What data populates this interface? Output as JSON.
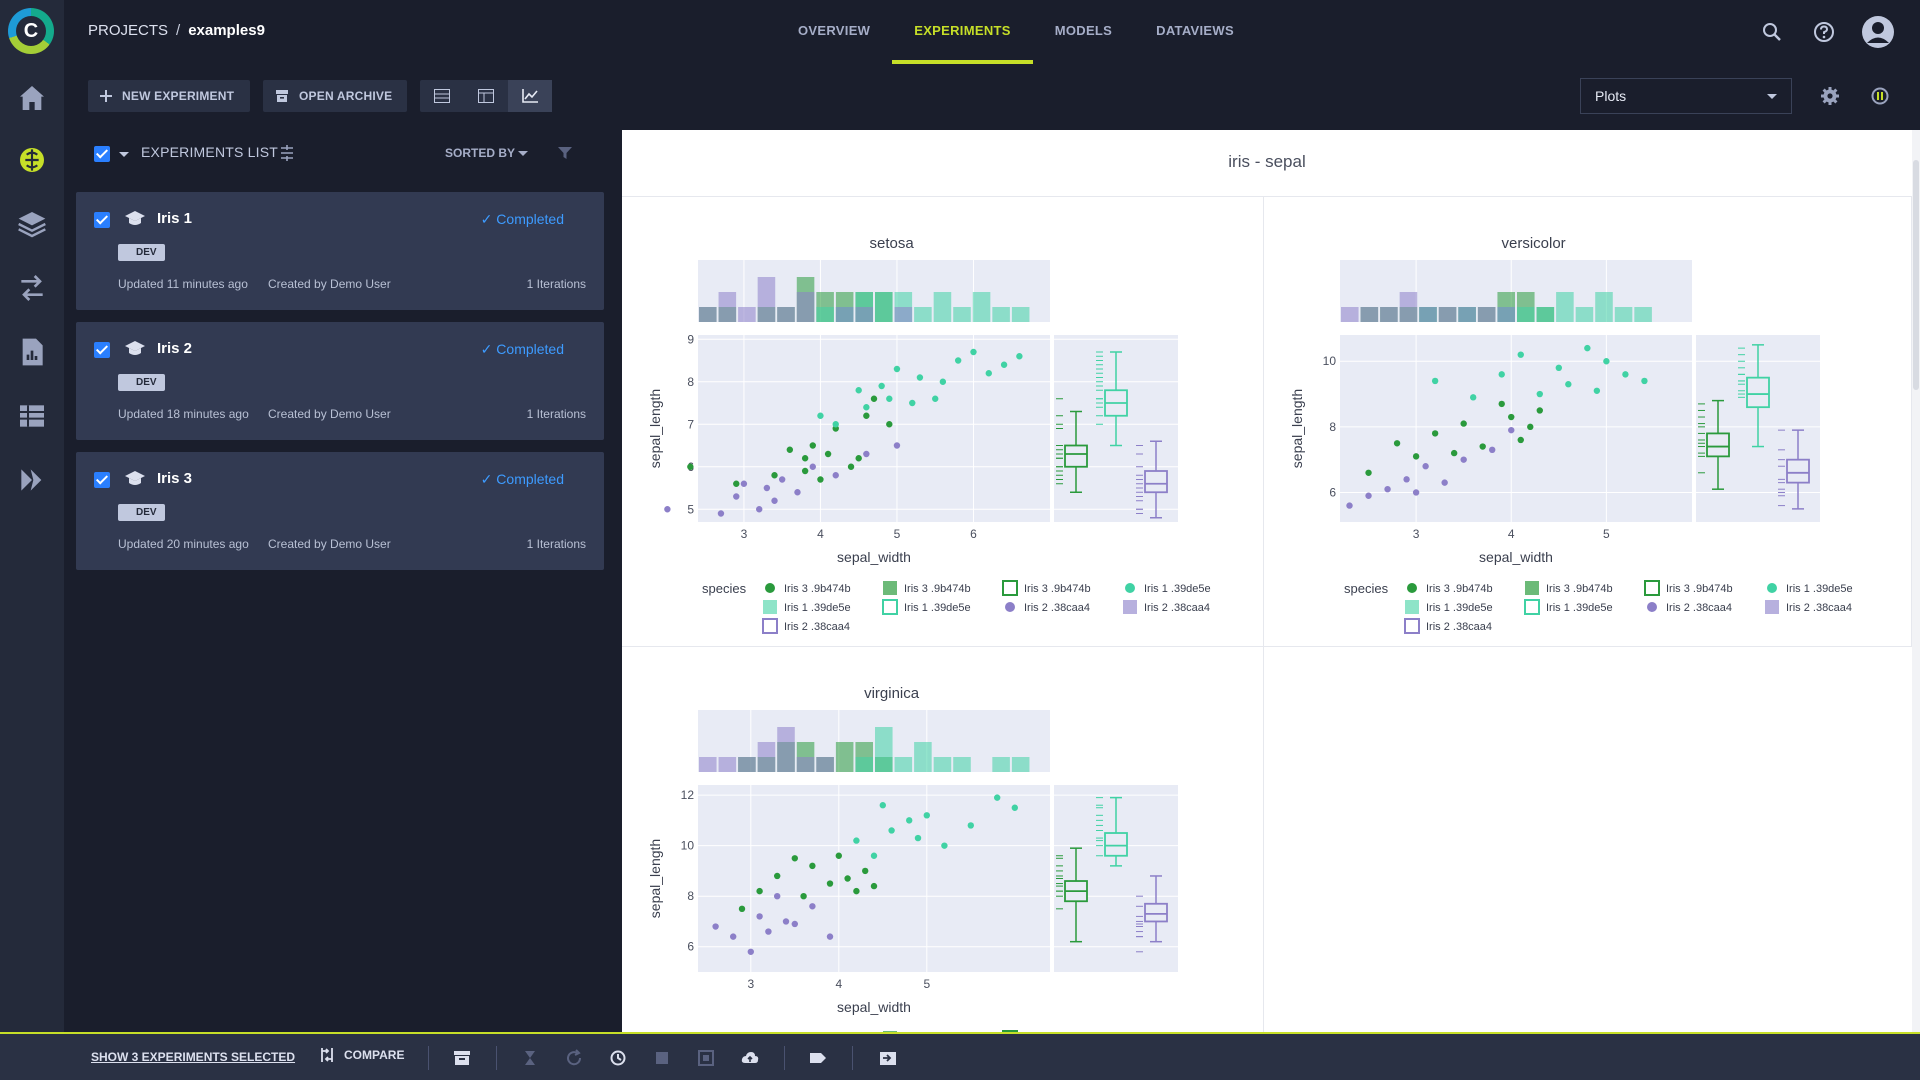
{
  "app": {
    "logo_letter": "C"
  },
  "breadcrumb": {
    "root": "PROJECTS",
    "separator": "/",
    "current": "examples9"
  },
  "tabs": [
    {
      "label": "OVERVIEW",
      "active": false
    },
    {
      "label": "EXPERIMENTS",
      "active": true
    },
    {
      "label": "MODELS",
      "active": false
    },
    {
      "label": "DATAVIEWS",
      "active": false
    }
  ],
  "toolbar": {
    "new_experiment": "NEW EXPERIMENT",
    "open_archive": "OPEN ARCHIVE",
    "view_select": "Plots"
  },
  "experiments_list": {
    "title": "EXPERIMENTS LIST",
    "sorted_by": "SORTED BY",
    "items": [
      {
        "name": "Iris 1",
        "status": "Completed",
        "tag": "DEV",
        "updated": "Updated 11 minutes ago",
        "created_by": "Created by Demo User",
        "iterations": "1 Iterations"
      },
      {
        "name": "Iris 2",
        "status": "Completed",
        "tag": "DEV",
        "updated": "Updated 18 minutes ago",
        "created_by": "Created by Demo User",
        "iterations": "1 Iterations"
      },
      {
        "name": "Iris 3",
        "status": "Completed",
        "tag": "DEV",
        "updated": "Updated 20 minutes ago",
        "created_by": "Created by Demo User",
        "iterations": "1 Iterations"
      }
    ]
  },
  "plot_section": {
    "title": "iris - sepal"
  },
  "legend": {
    "title": "species",
    "entries": [
      "Iris 3 .9b474b",
      "Iris 3 .9b474b",
      "Iris 3 .9b474b",
      "Iris 1 .39de5e",
      "Iris 1 .39de5e",
      "Iris 1 .39de5e",
      "Iris 2 .38caa4",
      "Iris 2 .38caa4",
      "Iris 2 .38caa4"
    ]
  },
  "colors": {
    "green": "#2a9a3c",
    "teal": "#40d2a4",
    "purple": "#8c7fc8",
    "accent": "#c6df28",
    "status_blue": "#3d9bff"
  },
  "chart_data": [
    {
      "type": "scatter",
      "title": "setosa",
      "xlabel": "sepal_width",
      "ylabel": "sepal_length",
      "x_ticks": [
        3,
        4,
        5,
        6
      ],
      "y_ticks": [
        5,
        6,
        7,
        8,
        9
      ],
      "xlim": [
        2.4,
        7.0
      ],
      "ylim": [
        4.7,
        9.1
      ],
      "series": [
        {
          "name": "Iris 3 .9b474b",
          "color": "#2a9a3c",
          "x": [
            2.3,
            2.9,
            3.4,
            3.6,
            3.8,
            3.8,
            3.9,
            4.0,
            4.1,
            4.2,
            4.4,
            4.5,
            4.6,
            4.7,
            4.9
          ],
          "y": [
            6.0,
            5.6,
            5.8,
            6.4,
            6.2,
            5.9,
            6.5,
            5.7,
            6.3,
            6.9,
            6.0,
            6.2,
            7.2,
            7.6,
            7.0
          ]
        },
        {
          "name": "Iris 1 .39de5e",
          "color": "#40d2a4",
          "x": [
            4.0,
            4.2,
            4.5,
            4.6,
            4.8,
            4.9,
            5.0,
            5.2,
            5.3,
            5.5,
            5.6,
            5.8,
            6.0,
            6.2,
            6.4,
            6.6
          ],
          "y": [
            7.2,
            7.0,
            7.8,
            7.4,
            7.9,
            7.6,
            8.3,
            7.5,
            8.1,
            7.6,
            8.0,
            8.5,
            8.7,
            8.2,
            8.4,
            8.6
          ]
        },
        {
          "name": "Iris 2 .38caa4",
          "color": "#8c7fc8",
          "x": [
            2.0,
            2.7,
            2.9,
            3.0,
            3.2,
            3.3,
            3.4,
            3.5,
            3.7,
            3.9,
            4.2,
            4.6,
            5.0
          ],
          "y": [
            5.0,
            4.9,
            5.3,
            5.6,
            5.0,
            5.5,
            5.2,
            5.7,
            5.4,
            6.0,
            5.8,
            6.3,
            6.5
          ]
        }
      ],
      "box_plots": [
        {
          "series": "Iris 3 .9b474b",
          "min": 5.4,
          "q1": 6.0,
          "median": 6.3,
          "q3": 6.5,
          "max": 7.3
        },
        {
          "series": "Iris 1 .39de5e",
          "min": 6.5,
          "q1": 7.2,
          "median": 7.5,
          "q3": 7.8,
          "max": 8.7
        },
        {
          "series": "Iris 2 .38caa4",
          "min": 4.8,
          "q1": 5.4,
          "median": 5.6,
          "q3": 5.9,
          "max": 6.6
        }
      ]
    },
    {
      "type": "scatter",
      "title": "versicolor",
      "xlabel": "sepal_width",
      "ylabel": "sepal_length",
      "x_ticks": [
        3,
        4,
        5
      ],
      "y_ticks": [
        6,
        8,
        10
      ],
      "xlim": [
        2.2,
        5.9
      ],
      "ylim": [
        5.1,
        10.8
      ],
      "series": [
        {
          "name": "Iris 3 .9b474b",
          "color": "#2a9a3c",
          "x": [
            2.5,
            2.8,
            3.0,
            3.2,
            3.4,
            3.5,
            3.7,
            3.9,
            4.0,
            4.1,
            4.2,
            4.3
          ],
          "y": [
            6.6,
            7.5,
            7.1,
            7.8,
            7.2,
            8.1,
            7.4,
            8.7,
            8.3,
            7.6,
            8.0,
            8.5
          ]
        },
        {
          "name": "Iris 1 .39de5e",
          "color": "#40d2a4",
          "x": [
            3.2,
            3.6,
            3.9,
            4.1,
            4.3,
            4.5,
            4.6,
            4.8,
            4.9,
            5.0,
            5.2,
            5.4
          ],
          "y": [
            9.4,
            8.9,
            9.6,
            10.2,
            9.0,
            9.8,
            9.3,
            10.4,
            9.1,
            10.0,
            9.6,
            9.4
          ]
        },
        {
          "name": "Iris 2 .38caa4",
          "color": "#8c7fc8",
          "x": [
            2.3,
            2.5,
            2.7,
            2.9,
            3.0,
            3.1,
            3.3,
            3.5,
            3.8,
            4.0
          ],
          "y": [
            5.6,
            5.9,
            6.1,
            6.4,
            6.0,
            6.8,
            6.3,
            7.0,
            7.3,
            7.9
          ]
        }
      ],
      "box_plots": [
        {
          "series": "Iris 3 .9b474b",
          "min": 6.1,
          "q1": 7.1,
          "median": 7.4,
          "q3": 7.8,
          "max": 8.8
        },
        {
          "series": "Iris 1 .39de5e",
          "min": 7.4,
          "q1": 8.6,
          "median": 9.0,
          "q3": 9.5,
          "max": 10.5
        },
        {
          "series": "Iris 2 .38caa4",
          "min": 5.5,
          "q1": 6.3,
          "median": 6.6,
          "q3": 7.0,
          "max": 7.9
        }
      ]
    },
    {
      "type": "scatter",
      "title": "virginica",
      "xlabel": "sepal_width",
      "ylabel": "sepal_length",
      "x_ticks": [
        3,
        4,
        5
      ],
      "y_ticks": [
        6,
        8,
        10,
        12
      ],
      "xlim": [
        2.4,
        6.4
      ],
      "ylim": [
        5.0,
        12.4
      ],
      "series": [
        {
          "name": "Iris 3 .9b474b",
          "color": "#2a9a3c",
          "x": [
            2.9,
            3.1,
            3.3,
            3.5,
            3.6,
            3.7,
            3.9,
            4.0,
            4.1,
            4.2,
            4.3,
            4.4
          ],
          "y": [
            7.5,
            8.2,
            8.8,
            9.5,
            8.0,
            9.2,
            8.5,
            9.6,
            8.7,
            8.2,
            9.0,
            8.4
          ]
        },
        {
          "name": "Iris 1 .39de5e",
          "color": "#40d2a4",
          "x": [
            4.2,
            4.4,
            4.5,
            4.6,
            4.8,
            4.9,
            5.0,
            5.2,
            5.5,
            5.8,
            6.0
          ],
          "y": [
            10.2,
            9.6,
            11.6,
            10.6,
            11.0,
            10.3,
            11.2,
            10.0,
            10.8,
            11.9,
            11.5
          ]
        },
        {
          "name": "Iris 2 .38caa4",
          "color": "#8c7fc8",
          "x": [
            2.6,
            2.8,
            3.0,
            3.1,
            3.2,
            3.3,
            3.4,
            3.5,
            3.7,
            3.9
          ],
          "y": [
            6.8,
            6.4,
            5.8,
            7.2,
            6.6,
            8.0,
            7.0,
            6.9,
            7.6,
            6.4
          ]
        }
      ],
      "box_plots": [
        {
          "series": "Iris 3 .9b474b",
          "min": 6.2,
          "q1": 7.8,
          "median": 8.2,
          "q3": 8.6,
          "max": 9.9
        },
        {
          "series": "Iris 1 .39de5e",
          "min": 9.2,
          "q1": 9.6,
          "median": 10.0,
          "q3": 10.5,
          "max": 11.9
        },
        {
          "series": "Iris 2 .38caa4",
          "min": 6.2,
          "q1": 7.0,
          "median": 7.3,
          "q3": 7.7,
          "max": 8.8
        }
      ]
    }
  ],
  "bottom_bar": {
    "show_selected": "SHOW 3 EXPERIMENTS SELECTED",
    "compare": "COMPARE"
  }
}
